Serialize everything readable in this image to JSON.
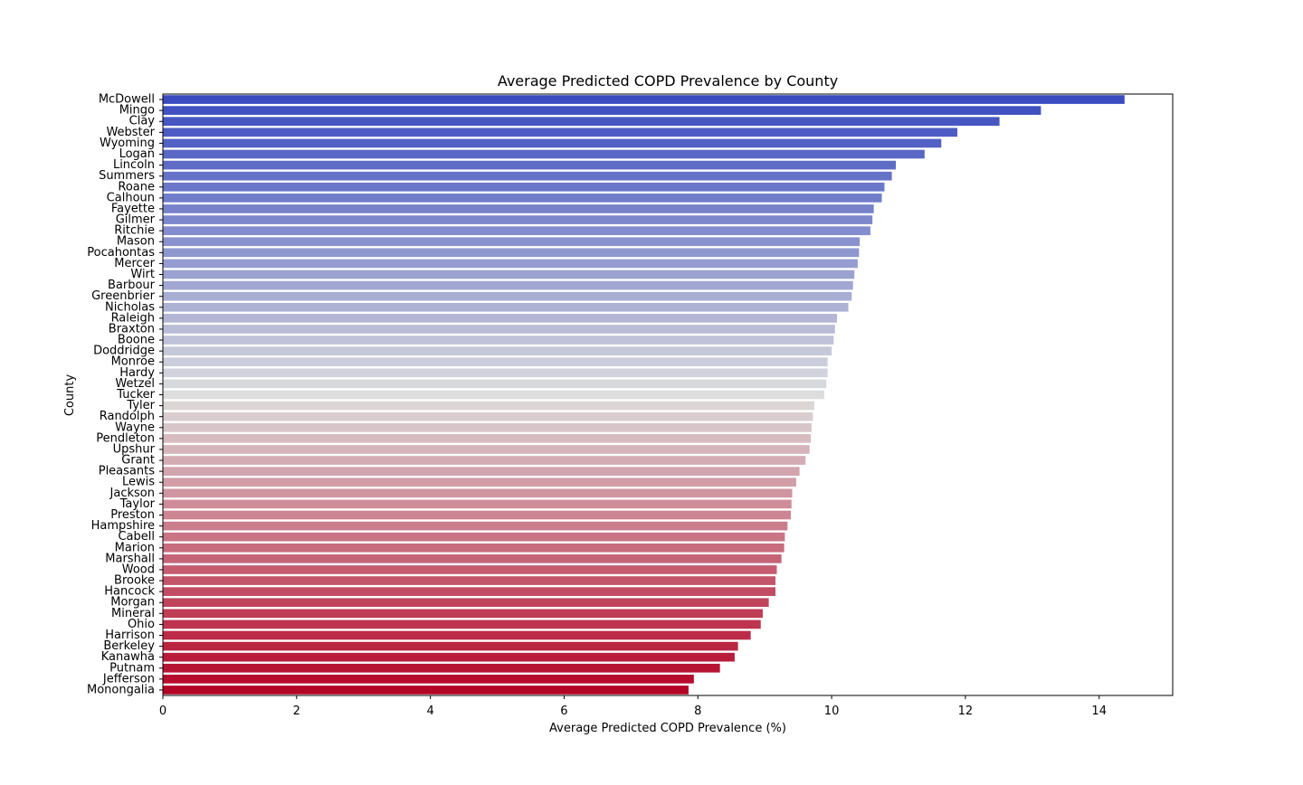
{
  "chart_data": {
    "type": "bar",
    "orientation": "horizontal",
    "title": "Average Predicted COPD Prevalence by County",
    "xlabel": "Average Predicted COPD Prevalence (%)",
    "ylabel": "County",
    "xlim": [
      0,
      15.1
    ],
    "xticks": [
      0,
      2,
      4,
      6,
      8,
      10,
      12,
      14
    ],
    "grid": false,
    "legend": "none",
    "palette": "coolwarm",
    "categories": [
      "McDowell",
      "Mingo",
      "Clay",
      "Webster",
      "Wyoming",
      "Logan",
      "Lincoln",
      "Summers",
      "Roane",
      "Calhoun",
      "Fayette",
      "Gilmer",
      "Ritchie",
      "Mason",
      "Pocahontas",
      "Mercer",
      "Wirt",
      "Barbour",
      "Greenbrier",
      "Nicholas",
      "Raleigh",
      "Braxton",
      "Boone",
      "Doddridge",
      "Monroe",
      "Hardy",
      "Wetzel",
      "Tucker",
      "Tyler",
      "Randolph",
      "Wayne",
      "Pendleton",
      "Upshur",
      "Grant",
      "Pleasants",
      "Lewis",
      "Jackson",
      "Taylor",
      "Preston",
      "Hampshire",
      "Cabell",
      "Marion",
      "Marshall",
      "Wood",
      "Brooke",
      "Hancock",
      "Morgan",
      "Mineral",
      "Ohio",
      "Harrison",
      "Berkeley",
      "Kanawha",
      "Putnam",
      "Jefferson",
      "Monongalia"
    ],
    "values": [
      14.38,
      13.13,
      12.51,
      11.88,
      11.64,
      11.39,
      10.96,
      10.9,
      10.79,
      10.75,
      10.63,
      10.61,
      10.58,
      10.42,
      10.41,
      10.39,
      10.34,
      10.32,
      10.3,
      10.25,
      10.08,
      10.05,
      10.03,
      10.0,
      9.94,
      9.94,
      9.92,
      9.89,
      9.74,
      9.72,
      9.7,
      9.69,
      9.67,
      9.61,
      9.52,
      9.47,
      9.41,
      9.4,
      9.39,
      9.34,
      9.3,
      9.29,
      9.25,
      9.18,
      9.16,
      9.16,
      9.06,
      8.97,
      8.94,
      8.79,
      8.6,
      8.55,
      8.33,
      7.94,
      7.86
    ],
    "colors": {
      "start": "#3b4cc0",
      "mid": "#dddddd",
      "end": "#b40426",
      "axis": "#000000"
    }
  }
}
